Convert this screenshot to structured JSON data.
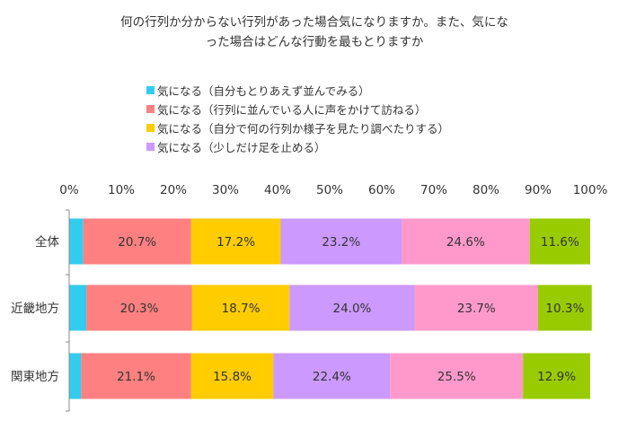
{
  "title_line1": "何の行列か分からない行列があった場合気になりますか。また、気にな",
  "title_line2": "った場合はどんな行動を最もとりますか",
  "chart_data": {
    "type": "bar",
    "orientation": "horizontal",
    "stacked": "percent",
    "categories": [
      "全体",
      "近畿地方",
      "関東地方"
    ],
    "xlim": [
      0,
      100
    ],
    "x_tick_labels": [
      "0%",
      "10%",
      "20%",
      "30%",
      "40%",
      "50%",
      "60%",
      "70%",
      "80%",
      "90%",
      "100%"
    ],
    "legend_position": "top-left",
    "grid": false,
    "series": [
      {
        "name": "気になる（自分もとりあえず並んでみる）",
        "color": "#33ccee",
        "values": [
          2.7,
          3.3,
          2.3
        ],
        "labels": [
          "",
          "",
          ""
        ]
      },
      {
        "name": "気になる（行列に並んでいる人に声をかけて訪ねる）",
        "color": "#ff8080",
        "values": [
          20.7,
          20.3,
          21.1
        ],
        "labels": [
          "20.7%",
          "20.3%",
          "21.1%"
        ]
      },
      {
        "name": "気になる（自分で何の行列か様子を見たり調べたりする）",
        "color": "#ffcc00",
        "values": [
          17.2,
          18.7,
          15.8
        ],
        "labels": [
          "17.2%",
          "18.7%",
          "15.8%"
        ]
      },
      {
        "name": "気になる（少しだけ足を止める）",
        "color": "#cc99ff",
        "values": [
          23.2,
          24.0,
          22.4
        ],
        "labels": [
          "23.2%",
          "24.0%",
          "22.4%"
        ]
      },
      {
        "name": "",
        "color": "#ff99cc",
        "values": [
          24.6,
          23.7,
          25.5
        ],
        "labels": [
          "24.6%",
          "23.7%",
          "25.5%"
        ]
      },
      {
        "name": "",
        "color": "#99cc00",
        "values": [
          11.6,
          10.3,
          12.9
        ],
        "labels": [
          "11.6%",
          "10.3%",
          "12.9%"
        ]
      }
    ]
  }
}
